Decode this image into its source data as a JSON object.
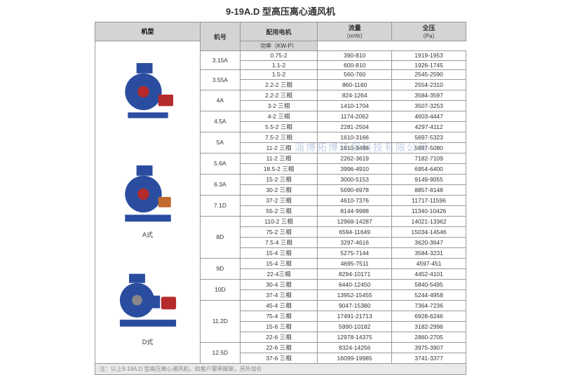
{
  "title": "9-19A.D 型高压离心通风机",
  "headers": {
    "model_img": "机型",
    "model_no": "机号",
    "motor": "配用电机",
    "power": "功率（KW-P）",
    "flow": "流量",
    "flow_unit": "（m³/h）",
    "pressure": "全压",
    "pressure_unit": "（Pa）"
  },
  "images": [
    {
      "label": ""
    },
    {
      "label": "A式"
    },
    {
      "label": "D式"
    }
  ],
  "colors": {
    "blue": "#2b4da0",
    "red": "#b52b2b",
    "orange": "#c06a2e",
    "gray": "#888"
  },
  "groups": [
    {
      "model": "3.15A",
      "rows": [
        {
          "p": "0.75-2",
          "f": "390-810",
          "pr": "1919-1953"
        },
        {
          "p": "1.1-2",
          "f": "600-810",
          "pr": "1926-1745"
        }
      ]
    },
    {
      "model": "3.55A",
      "rows": [
        {
          "p": "1.5-2",
          "f": "560-760",
          "pr": "2545-2590"
        },
        {
          "p": "2.2-2 三相",
          "f": "860-1160",
          "pr": "2554-2310"
        }
      ]
    },
    {
      "model": "4A",
      "rows": [
        {
          "p": "2.2-2 三相",
          "f": "824-1264",
          "pr": "3584-3597"
        },
        {
          "p": "3-2 三相",
          "f": "1410-1704",
          "pr": "3507-3253"
        }
      ]
    },
    {
      "model": "4.5A",
      "rows": [
        {
          "p": "4-2 三相",
          "f": "1174-2062",
          "pr": "4603-4447"
        },
        {
          "p": "5.5-2 三相",
          "f": "2281-2504",
          "pr": "4297-4112"
        }
      ]
    },
    {
      "model": "5A",
      "rows": [
        {
          "p": "7.5-2 三相",
          "f": "1610-3166",
          "pr": "5697-5323"
        },
        {
          "p": "11-2 三相",
          "f": "1610-3488",
          "pr": "5697-5080"
        }
      ]
    },
    {
      "model": "5.6A",
      "rows": [
        {
          "p": "11-2 三相",
          "f": "2262-3619",
          "pr": "7182-7109"
        },
        {
          "p": "18.5-2 三相",
          "f": "3996-4910",
          "pr": "6954-6400"
        }
      ]
    },
    {
      "model": "6.3A",
      "rows": [
        {
          "p": "15-2 三相",
          "f": "3000-5153",
          "pr": "9149-9055"
        },
        {
          "p": "30-2 三相",
          "f": "5690-6978",
          "pr": "8857-8148"
        }
      ]
    },
    {
      "model": "7.1D",
      "rows": [
        {
          "p": "37-2 三相",
          "f": "4610-7376",
          "pr": "11717-11596"
        },
        {
          "p": "55-2 三相",
          "f": "8144-9988",
          "pr": "11340-10426"
        }
      ]
    },
    {
      "model": "8D",
      "rows": [
        {
          "p": "110-2 三相",
          "f": "12968-14287",
          "pr": "14021-13362"
        },
        {
          "p": "75-2 三相",
          "f": "6594-11649",
          "pr": "15034-14546"
        },
        {
          "p": "7.5-4 三相",
          "f": "3297-4616",
          "pr": "3620-3647"
        },
        {
          "p": "15-4 三相",
          "f": "5275-7144",
          "pr": "3584-3231"
        }
      ]
    },
    {
      "model": "9D",
      "rows": [
        {
          "p": "15-4 三相",
          "f": "4695-7511",
          "pr": "4597-451"
        },
        {
          "p": "22-4三相",
          "f": "8294-10171",
          "pr": "4452-4101"
        }
      ]
    },
    {
      "model": "10D",
      "rows": [
        {
          "p": "30-4 三相",
          "f": "6440-12450",
          "pr": "5840-5495"
        },
        {
          "p": "37-4 三相",
          "f": "13952-15455",
          "pr": "5244-4958"
        }
      ]
    },
    {
      "model": "11.2D",
      "rows": [
        {
          "p": "45-4 三相",
          "f": "9047-15380",
          "pr": "7364-7236"
        },
        {
          "p": "75-4 三相",
          "f": "17491-21713",
          "pr": "6928-6246"
        },
        {
          "p": "15-6 三相",
          "f": "5990-10182",
          "pr": "3182-2996"
        },
        {
          "p": "22-6 三相",
          "f": "12978-14375",
          "pr": "2860-2705"
        }
      ]
    },
    {
      "model": "12.5D",
      "rows": [
        {
          "p": "22-6 三相",
          "f": "8324-14256",
          "pr": "3975-3907"
        },
        {
          "p": "37-6 三相",
          "f": "16099-19985",
          "pr": "3741-3377"
        }
      ]
    }
  ],
  "footer": "注：以上9-19A.D 型高压离心通风机，如客户需带脚架，另外加价",
  "watermark": "淄博拓博环保科技有限公司"
}
